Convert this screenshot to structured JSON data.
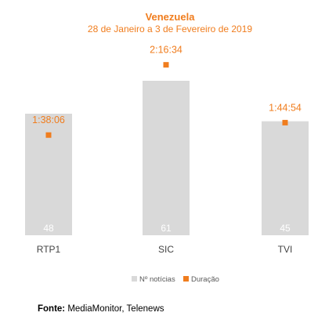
{
  "colors": {
    "bar": "#d9d9d9",
    "accent": "#f07d1e",
    "text": "#444444",
    "bar_value_text": "#ffffff"
  },
  "chart_data": {
    "type": "bar",
    "title": "Venezuela",
    "subtitle": "28 de Janeiro a 3 de Fevereiro de 2019",
    "categories": [
      "RTP1",
      "SIC",
      "TVI"
    ],
    "series": [
      {
        "name": "Nº notícias",
        "type": "bar",
        "values": [
          48,
          61,
          45
        ]
      },
      {
        "name": "Duração",
        "type": "point",
        "values": [
          "1:38:06",
          "2:16:34",
          "1:44:54"
        ]
      }
    ],
    "legend": "bottom-center",
    "grid": false
  },
  "source": {
    "label": "Fonte:",
    "text": " MediaMonitor, Telenews"
  }
}
